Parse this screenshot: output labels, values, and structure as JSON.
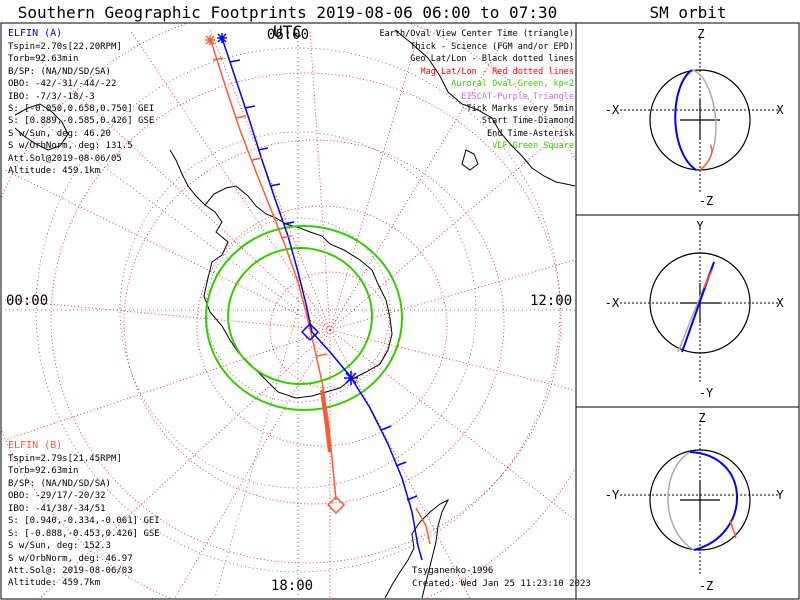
{
  "header": {
    "title": "Southern Geographic Footprints 2019-08-06 06:00 to 07:30 UTC",
    "orbit_title": "SM orbit"
  },
  "clock": {
    "top": "06:00",
    "left": "00:00",
    "right": "12:00",
    "bottom": "18:00"
  },
  "elfin_a": {
    "name": "ELFIN (A)",
    "color": "#0000ff",
    "lines": [
      "Tspin=2.70s[22.20RPM]",
      "Torb=92.63min",
      "B/SP: (NA/ND/SD/SA)",
      "OBO: -42/-31/-44/-22",
      "IBO: -7/3/-18/-3",
      "S: [-0.050,0.658,0.750] GEI",
      "S: [0.889,-0.585,0.426] GSE",
      "S w/Sun, deg: 46.20",
      "S w/OrbNorm, deg: 131.5",
      "Att.Sol@2019-08-06/05",
      "Altitude: 459.1km"
    ]
  },
  "elfin_b": {
    "name": "ELFIN (B)",
    "color": "#ff5a36",
    "lines": [
      "Tspin=2.79s[21.45RPM]",
      "Torb=92.63min",
      "B/SP: (NA/ND/SD/SA)",
      "OBO: -29/17/-20/32",
      "IBO: -41/38/-34/51",
      "S: [0.940,-0.334,-0.061] GEI",
      "S: [-0.888,-0.453,0.426] GSE",
      "S w/Sun, deg: 152.3",
      "S w/OrbNorm, deg: 46.97",
      "Att.Sol@: 2019-08-06/03",
      "Altitude: 459.7km"
    ]
  },
  "legend": [
    {
      "text": "Earth/Oval View Center Time (triangle)",
      "color": "#000000"
    },
    {
      "text": "Thick - Science (FGM and/or EPD)",
      "color": "#000000"
    },
    {
      "text": "Geo Lat/Lon - Black dotted lines",
      "color": "#000000"
    },
    {
      "text": "Mag Lat/Lon - Red dotted lines",
      "color": "#ff0000"
    },
    {
      "text": "Auroral Oval-Green, kp=2",
      "color": "#33cc00"
    },
    {
      "text": "EISCAT-Purple Triangle",
      "color": "#cc66ff"
    },
    {
      "text": "Tick Marks every 5min",
      "color": "#000000"
    },
    {
      "text": "Start Time-Diamond",
      "color": "#000000"
    },
    {
      "text": "End Time-Asterisk",
      "color": "#000000"
    },
    {
      "text": "VLF-Green Square",
      "color": "#33cc00"
    }
  ],
  "credits": {
    "model": "Tsyganenko-1996",
    "created": "Created: Wed Jan 25 11:23:10 2023"
  },
  "orbit_panels": [
    {
      "top": "Z",
      "bottom": "-Z",
      "left": "-X",
      "right": "X"
    },
    {
      "top": "Y",
      "bottom": "-Y",
      "left": "-X",
      "right": "X"
    },
    {
      "top": "Z",
      "bottom": "-Z",
      "left": "-Y",
      "right": "Y"
    }
  ],
  "colors": {
    "elfin_a": "#0000ff",
    "elfin_b": "#ff5a36",
    "auroral_oval": "#33cc00",
    "mag_grid": "#ff0000",
    "geo_grid": "#000000"
  }
}
